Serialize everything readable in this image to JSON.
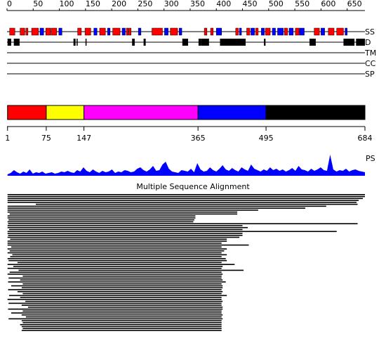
{
  "ruler": {
    "ticks": [
      0,
      50,
      100,
      150,
      200,
      250,
      300,
      350,
      400,
      450,
      500,
      550,
      600,
      650
    ]
  },
  "tracks": [
    "SS",
    "D",
    "TM",
    "CC",
    "SP"
  ],
  "secondary_structure": [
    [
      5,
      15,
      "#ff0000"
    ],
    [
      25,
      34,
      "#ff0000"
    ],
    [
      36,
      40,
      "#ff0000"
    ],
    [
      47,
      60,
      "#ff0000"
    ],
    [
      63,
      70,
      "#0000ff"
    ],
    [
      74,
      83,
      "#ff0000"
    ],
    [
      84,
      95,
      "#ff0000"
    ],
    [
      99,
      105,
      "#0000ff"
    ],
    [
      135,
      142,
      "#ff0000"
    ],
    [
      149,
      160,
      "#ff0000"
    ],
    [
      166,
      172,
      "#0000ff"
    ],
    [
      177,
      188,
      "#ff0000"
    ],
    [
      192,
      197,
      "#0000ff"
    ],
    [
      202,
      216,
      "#ff0000"
    ],
    [
      220,
      226,
      "#0000ff"
    ],
    [
      228,
      232,
      "#ff0000"
    ],
    [
      233,
      237,
      "#ff0000"
    ],
    [
      251,
      256,
      "#0000ff"
    ],
    [
      277,
      297,
      "#ff0000"
    ],
    [
      301,
      308,
      "#0000ff"
    ],
    [
      312,
      326,
      "#ff0000"
    ],
    [
      329,
      334,
      "#0000ff"
    ],
    [
      377,
      382,
      "#ff0000"
    ],
    [
      389,
      394,
      "#ff0000"
    ],
    [
      400,
      410,
      "#0000ff"
    ],
    [
      437,
      442,
      "#ff0000"
    ],
    [
      444,
      448,
      "#0000ff"
    ],
    [
      458,
      464,
      "#ff0000"
    ],
    [
      466,
      473,
      "#0000ff"
    ],
    [
      475,
      480,
      "#ff0000"
    ],
    [
      486,
      492,
      "#0000ff"
    ],
    [
      494,
      503,
      "#ff0000"
    ],
    [
      507,
      513,
      "#0000ff"
    ],
    [
      517,
      528,
      "#0000ff"
    ],
    [
      530,
      536,
      "#ff0000"
    ],
    [
      539,
      547,
      "#0000ff"
    ],
    [
      551,
      558,
      "#ff0000"
    ],
    [
      559,
      568,
      "#0000ff"
    ],
    [
      587,
      597,
      "#ff0000"
    ],
    [
      600,
      607,
      "#0000ff"
    ],
    [
      614,
      625,
      "#ff0000"
    ],
    [
      630,
      643,
      "#ff0000"
    ],
    [
      646,
      650,
      "#0000ff"
    ]
  ],
  "disorder": [
    [
      1,
      8
    ],
    [
      13,
      24
    ],
    [
      127,
      131
    ],
    [
      133,
      135
    ],
    [
      150,
      151
    ],
    [
      239,
      244
    ],
    [
      261,
      265
    ],
    [
      335,
      346
    ],
    [
      366,
      371
    ],
    [
      371,
      386
    ],
    [
      407,
      456
    ],
    [
      491,
      494
    ],
    [
      578,
      590
    ],
    [
      643,
      664
    ],
    [
      667,
      684
    ]
  ],
  "domains": {
    "boundaries": [
      1,
      75,
      147,
      365,
      495,
      684
    ],
    "colors": [
      "#ff0000",
      "#ffff00",
      "#ff00ff",
      "#0000ff",
      "#000000"
    ]
  },
  "ps": {
    "label": "PS",
    "color": "#0000ff",
    "values": [
      2,
      4,
      8,
      5,
      3,
      6,
      4,
      9,
      3,
      5,
      4,
      6,
      3,
      4,
      5,
      3,
      4,
      6,
      5,
      7,
      5,
      4,
      8,
      6,
      12,
      7,
      5,
      9,
      6,
      4,
      7,
      5,
      6,
      9,
      4,
      6,
      5,
      8,
      7,
      5,
      6,
      10,
      12,
      8,
      6,
      9,
      14,
      7,
      8,
      16,
      20,
      10,
      6,
      5,
      4,
      8,
      7,
      6,
      10,
      5,
      18,
      9,
      6,
      7,
      12,
      8,
      6,
      10,
      15,
      9,
      7,
      11,
      8,
      6,
      12,
      9,
      7,
      16,
      10,
      8,
      6,
      9,
      7,
      12,
      8,
      10,
      7,
      9,
      6,
      8,
      11,
      7,
      14,
      9,
      8,
      6,
      10,
      7,
      9,
      12,
      8,
      7,
      30,
      9,
      6,
      8,
      7,
      10,
      6,
      8,
      9,
      7,
      6,
      5
    ]
  },
  "alignment": {
    "title": "Multiple Sequence Alignment",
    "rows": [
      [
        1,
        684
      ],
      [
        1,
        684
      ],
      [
        1,
        680
      ],
      [
        1,
        672
      ],
      [
        1,
        668
      ],
      [
        55,
        670
      ],
      [
        1,
        610
      ],
      [
        1,
        570
      ],
      [
        1,
        480
      ],
      [
        1,
        440
      ],
      [
        5,
        440
      ],
      [
        1,
        360
      ],
      [
        1,
        360
      ],
      [
        3,
        358
      ],
      [
        1,
        356
      ],
      [
        2,
        670
      ],
      [
        1,
        450
      ],
      [
        1,
        460
      ],
      [
        4,
        450
      ],
      [
        1,
        630
      ],
      [
        1,
        450
      ],
      [
        2,
        450
      ],
      [
        1,
        444
      ],
      [
        6,
        420
      ],
      [
        1,
        420
      ],
      [
        1,
        410
      ],
      [
        1,
        462
      ],
      [
        8,
        410
      ],
      [
        1,
        420
      ],
      [
        5,
        415
      ],
      [
        1,
        410
      ],
      [
        10,
        420
      ],
      [
        6,
        410
      ],
      [
        1,
        418
      ],
      [
        3,
        420
      ],
      [
        20,
        410
      ],
      [
        1,
        435
      ],
      [
        12,
        412
      ],
      [
        1,
        410
      ],
      [
        22,
        452
      ],
      [
        5,
        410
      ],
      [
        1,
        412
      ],
      [
        30,
        410
      ],
      [
        3,
        410
      ],
      [
        25,
        412
      ],
      [
        2,
        418
      ],
      [
        30,
        410
      ],
      [
        8,
        412
      ],
      [
        28,
        412
      ],
      [
        2,
        410
      ],
      [
        20,
        412
      ],
      [
        30,
        410
      ],
      [
        4,
        420
      ],
      [
        25,
        410
      ],
      [
        1,
        410
      ],
      [
        35,
        412
      ],
      [
        3,
        410
      ],
      [
        28,
        410
      ],
      [
        40,
        412
      ],
      [
        2,
        412
      ],
      [
        30,
        410
      ],
      [
        8,
        410
      ],
      [
        28,
        412
      ],
      [
        36,
        410
      ],
      [
        3,
        412
      ],
      [
        28,
        410
      ],
      [
        30,
        410
      ],
      [
        25,
        410
      ],
      [
        28,
        410
      ],
      [
        30,
        410
      ],
      [
        28,
        410
      ]
    ]
  }
}
